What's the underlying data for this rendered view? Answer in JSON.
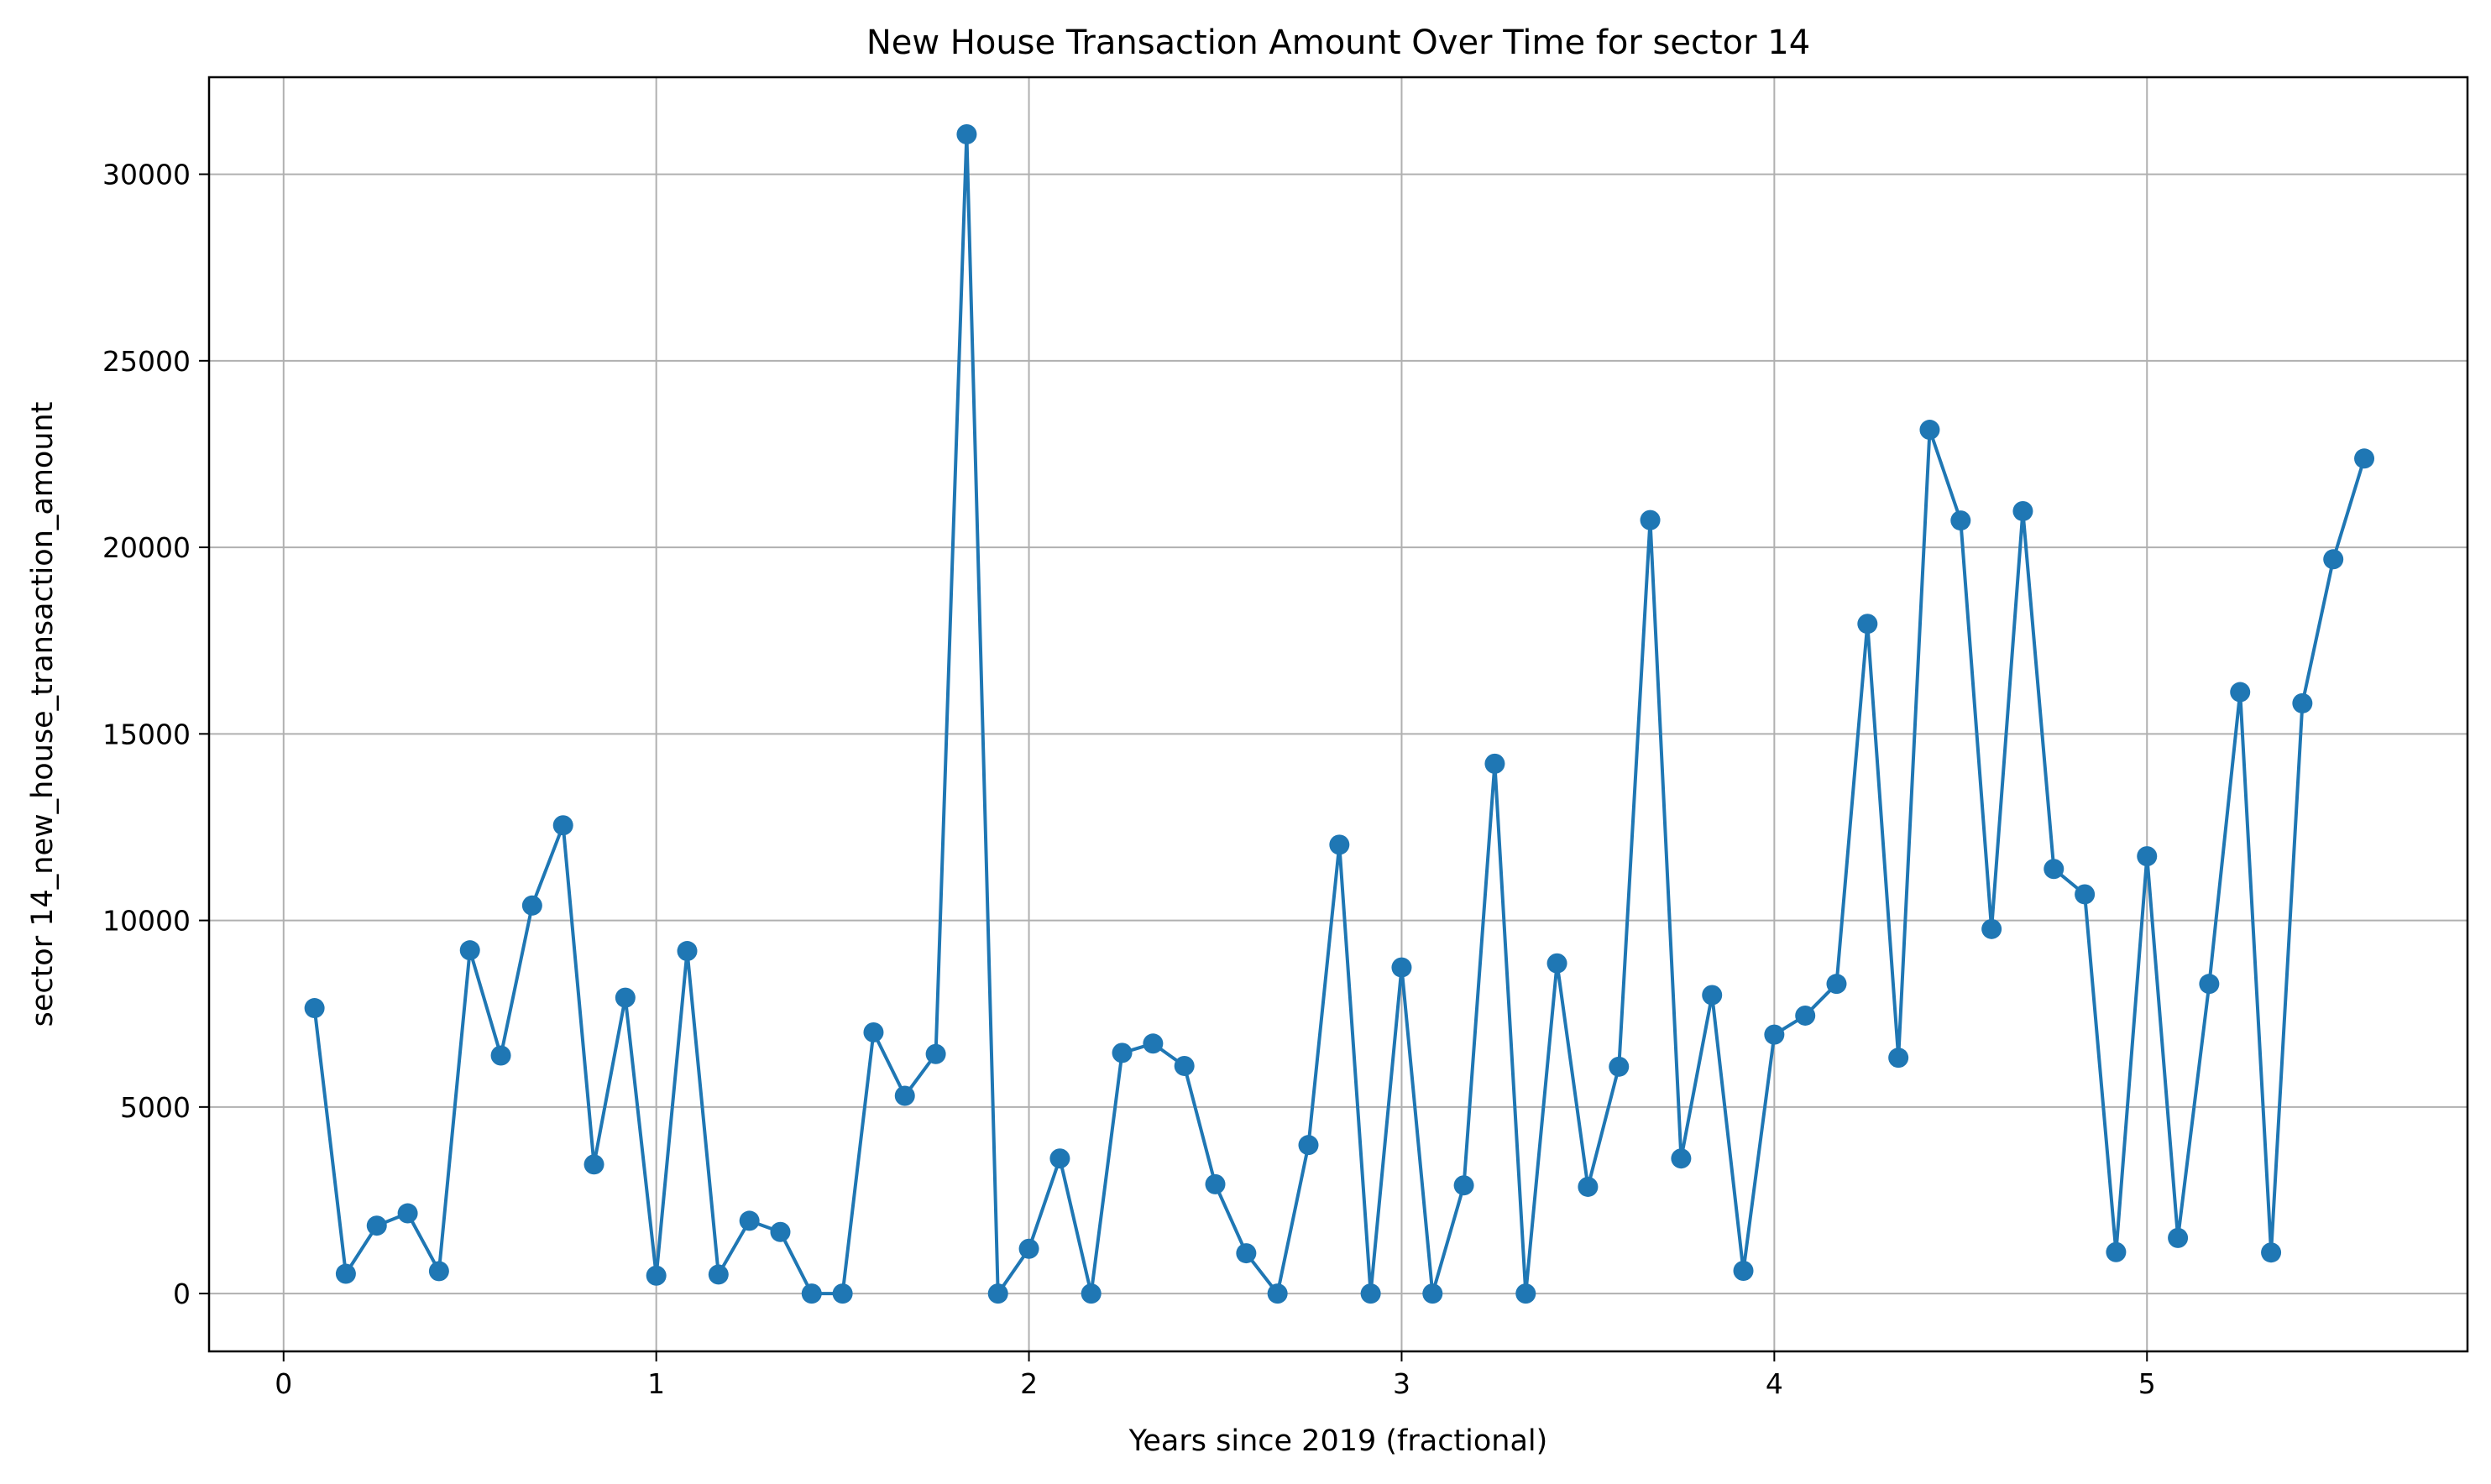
{
  "chart_data": {
    "type": "line",
    "title": "New House Transaction Amount Over Time for sector 14",
    "xlabel": "Years since 2019 (fractional)",
    "ylabel": "sector 14_new_house_transaction_amount",
    "xlim": [
      -0.2,
      5.86
    ],
    "ylim": [
      -1550,
      32600
    ],
    "xticks": [
      0,
      1,
      2,
      3,
      4,
      5
    ],
    "yticks": [
      0,
      5000,
      10000,
      15000,
      20000,
      25000,
      30000
    ],
    "grid": true,
    "marker": "circle",
    "color": "#1f77b4",
    "series": [
      {
        "x": [
          0.083,
          0.167,
          0.25,
          0.333,
          0.417,
          0.5,
          0.583,
          0.667,
          0.75,
          0.833,
          0.917,
          1.0,
          1.083,
          1.167,
          1.25,
          1.333,
          1.417,
          1.5,
          1.583,
          1.667,
          1.75,
          1.833,
          1.917,
          2.0,
          2.083,
          2.167,
          2.25,
          2.333,
          2.417,
          2.5,
          2.583,
          2.667,
          2.75,
          2.833,
          2.917,
          3.0,
          3.083,
          3.167,
          3.25,
          3.333,
          3.417,
          3.5,
          3.583,
          3.667,
          3.75,
          3.833,
          3.917,
          4.0,
          4.083,
          4.167,
          4.25,
          4.333,
          4.417,
          4.5,
          4.583,
          4.667,
          4.75,
          4.833,
          4.917,
          5.0,
          5.083,
          5.167,
          5.25,
          5.333,
          5.417,
          5.5,
          5.583
        ],
        "y": [
          7650,
          530,
          1820,
          2150,
          600,
          9200,
          6380,
          10400,
          12550,
          3460,
          7930,
          480,
          9180,
          510,
          1950,
          1650,
          0,
          0,
          7000,
          5300,
          6420,
          31070,
          0,
          1200,
          3620,
          0,
          6450,
          6700,
          6100,
          2930,
          1080,
          0,
          3980,
          12030,
          0,
          8740,
          0,
          2900,
          14200,
          0,
          8850,
          2860,
          6080,
          20730,
          3620,
          8000,
          610,
          6940,
          7450,
          8300,
          17950,
          6320,
          23150,
          20720,
          9770,
          20970,
          11380,
          10700,
          1110,
          11720,
          1490,
          8300,
          16120,
          1100,
          15820,
          19680,
          22380
        ]
      }
    ]
  }
}
